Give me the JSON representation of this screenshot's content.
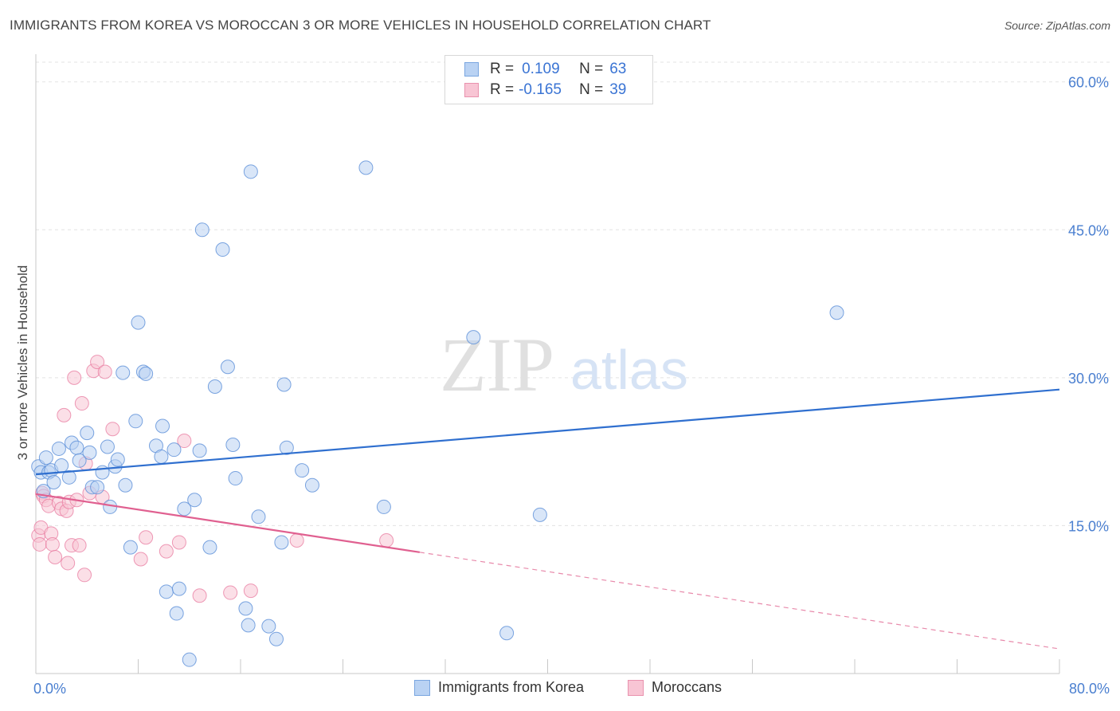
{
  "title": "IMMIGRANTS FROM KOREA VS MOROCCAN 3 OR MORE VEHICLES IN HOUSEHOLD CORRELATION CHART",
  "source": "Source: ZipAtlas.com",
  "watermark": {
    "zip": "ZIP",
    "atlas": "atlas"
  },
  "legend_top": {
    "rows": [
      {
        "r_label": "R =",
        "r_value": "0.109",
        "n_label": "N =",
        "n_value": "63",
        "color": "#a8c8f0"
      },
      {
        "r_label": "R =",
        "r_value": "-0.165",
        "n_label": "N =",
        "n_value": "39",
        "color": "#f5b8cb"
      }
    ]
  },
  "legend_bottom": {
    "series1": "Immigrants from Korea",
    "series2": "Moroccans"
  },
  "chart_data": {
    "type": "scatter",
    "xlabel": "",
    "ylabel": "3 or more Vehicles in Household",
    "xlim": [
      0,
      80
    ],
    "ylim": [
      0,
      62
    ],
    "x_tick_labels": [
      "0.0%",
      "80.0%"
    ],
    "y_ticks": [
      15,
      30,
      45,
      60
    ],
    "y_tick_labels": [
      "15.0%",
      "30.0%",
      "45.0%",
      "60.0%"
    ],
    "grid": "horizontal dashed",
    "series": [
      {
        "name": "Immigrants from Korea",
        "color": "#5b8fd8",
        "fill": "#b9d2f3",
        "points": [
          [
            0.2,
            21.0
          ],
          [
            0.4,
            20.4
          ],
          [
            0.6,
            18.5
          ],
          [
            0.8,
            21.9
          ],
          [
            1.0,
            20.4
          ],
          [
            1.2,
            20.6
          ],
          [
            1.4,
            19.4
          ],
          [
            1.8,
            22.8
          ],
          [
            2.0,
            21.1
          ],
          [
            2.6,
            19.9
          ],
          [
            2.8,
            23.4
          ],
          [
            3.2,
            22.9
          ],
          [
            3.4,
            21.6
          ],
          [
            4.0,
            24.4
          ],
          [
            4.2,
            22.4
          ],
          [
            4.4,
            18.9
          ],
          [
            4.8,
            18.9
          ],
          [
            5.2,
            20.4
          ],
          [
            5.6,
            23.0
          ],
          [
            5.8,
            16.9
          ],
          [
            6.2,
            21.0
          ],
          [
            6.4,
            21.7
          ],
          [
            6.8,
            30.5
          ],
          [
            7.0,
            19.1
          ],
          [
            7.4,
            12.8
          ],
          [
            7.8,
            25.6
          ],
          [
            8.0,
            35.6
          ],
          [
            8.4,
            30.6
          ],
          [
            8.6,
            30.4
          ],
          [
            9.4,
            23.1
          ],
          [
            9.8,
            22.0
          ],
          [
            9.9,
            25.1
          ],
          [
            10.2,
            8.3
          ],
          [
            10.8,
            22.7
          ],
          [
            11.0,
            6.1
          ],
          [
            11.2,
            8.6
          ],
          [
            11.6,
            16.7
          ],
          [
            12.0,
            1.4
          ],
          [
            12.4,
            17.6
          ],
          [
            12.8,
            22.6
          ],
          [
            13.0,
            45.0
          ],
          [
            13.6,
            12.8
          ],
          [
            14.0,
            29.1
          ],
          [
            14.6,
            43.0
          ],
          [
            15.0,
            31.1
          ],
          [
            15.4,
            23.2
          ],
          [
            15.6,
            19.8
          ],
          [
            16.4,
            6.6
          ],
          [
            16.6,
            4.9
          ],
          [
            16.8,
            50.9
          ],
          [
            17.4,
            15.9
          ],
          [
            18.2,
            4.8
          ],
          [
            18.8,
            3.5
          ],
          [
            19.2,
            13.3
          ],
          [
            19.4,
            29.3
          ],
          [
            19.6,
            22.9
          ],
          [
            20.8,
            20.6
          ],
          [
            21.6,
            19.1
          ],
          [
            25.8,
            51.3
          ],
          [
            27.2,
            16.9
          ],
          [
            34.2,
            34.1
          ],
          [
            36.8,
            4.1
          ],
          [
            39.4,
            16.1
          ],
          [
            62.6,
            36.6
          ]
        ],
        "trend": {
          "x0": 0,
          "y0": 20.2,
          "x1": 80,
          "y1": 28.8
        }
      },
      {
        "name": "Moroccans",
        "color": "#e8799f",
        "fill": "#f8c5d4",
        "points": [
          [
            0.2,
            14.0
          ],
          [
            0.3,
            13.1
          ],
          [
            0.4,
            14.8
          ],
          [
            0.5,
            18.3
          ],
          [
            0.6,
            18.0
          ],
          [
            0.8,
            17.6
          ],
          [
            1.0,
            17.0
          ],
          [
            1.2,
            14.2
          ],
          [
            1.3,
            13.1
          ],
          [
            1.5,
            11.8
          ],
          [
            1.8,
            17.3
          ],
          [
            2.0,
            16.7
          ],
          [
            2.2,
            26.2
          ],
          [
            2.4,
            16.5
          ],
          [
            2.5,
            11.2
          ],
          [
            2.6,
            17.4
          ],
          [
            2.8,
            13.0
          ],
          [
            3.0,
            30.0
          ],
          [
            3.2,
            17.6
          ],
          [
            3.4,
            13.0
          ],
          [
            3.6,
            27.4
          ],
          [
            3.8,
            10.0
          ],
          [
            3.9,
            21.3
          ],
          [
            4.2,
            18.3
          ],
          [
            4.5,
            30.7
          ],
          [
            4.8,
            31.6
          ],
          [
            5.2,
            17.9
          ],
          [
            5.4,
            30.6
          ],
          [
            6.0,
            24.8
          ],
          [
            8.2,
            11.6
          ],
          [
            8.6,
            13.8
          ],
          [
            10.2,
            12.4
          ],
          [
            11.2,
            13.3
          ],
          [
            11.6,
            23.6
          ],
          [
            12.8,
            7.9
          ],
          [
            15.2,
            8.2
          ],
          [
            16.8,
            8.4
          ],
          [
            20.4,
            13.5
          ],
          [
            27.4,
            13.5
          ]
        ],
        "trend": {
          "x0": 0,
          "y0": 18.2,
          "x1": 30,
          "y1": 12.3
        },
        "trend_extension": {
          "x0": 30,
          "y0": 12.3,
          "x1": 80,
          "y1": 2.5
        }
      }
    ]
  }
}
